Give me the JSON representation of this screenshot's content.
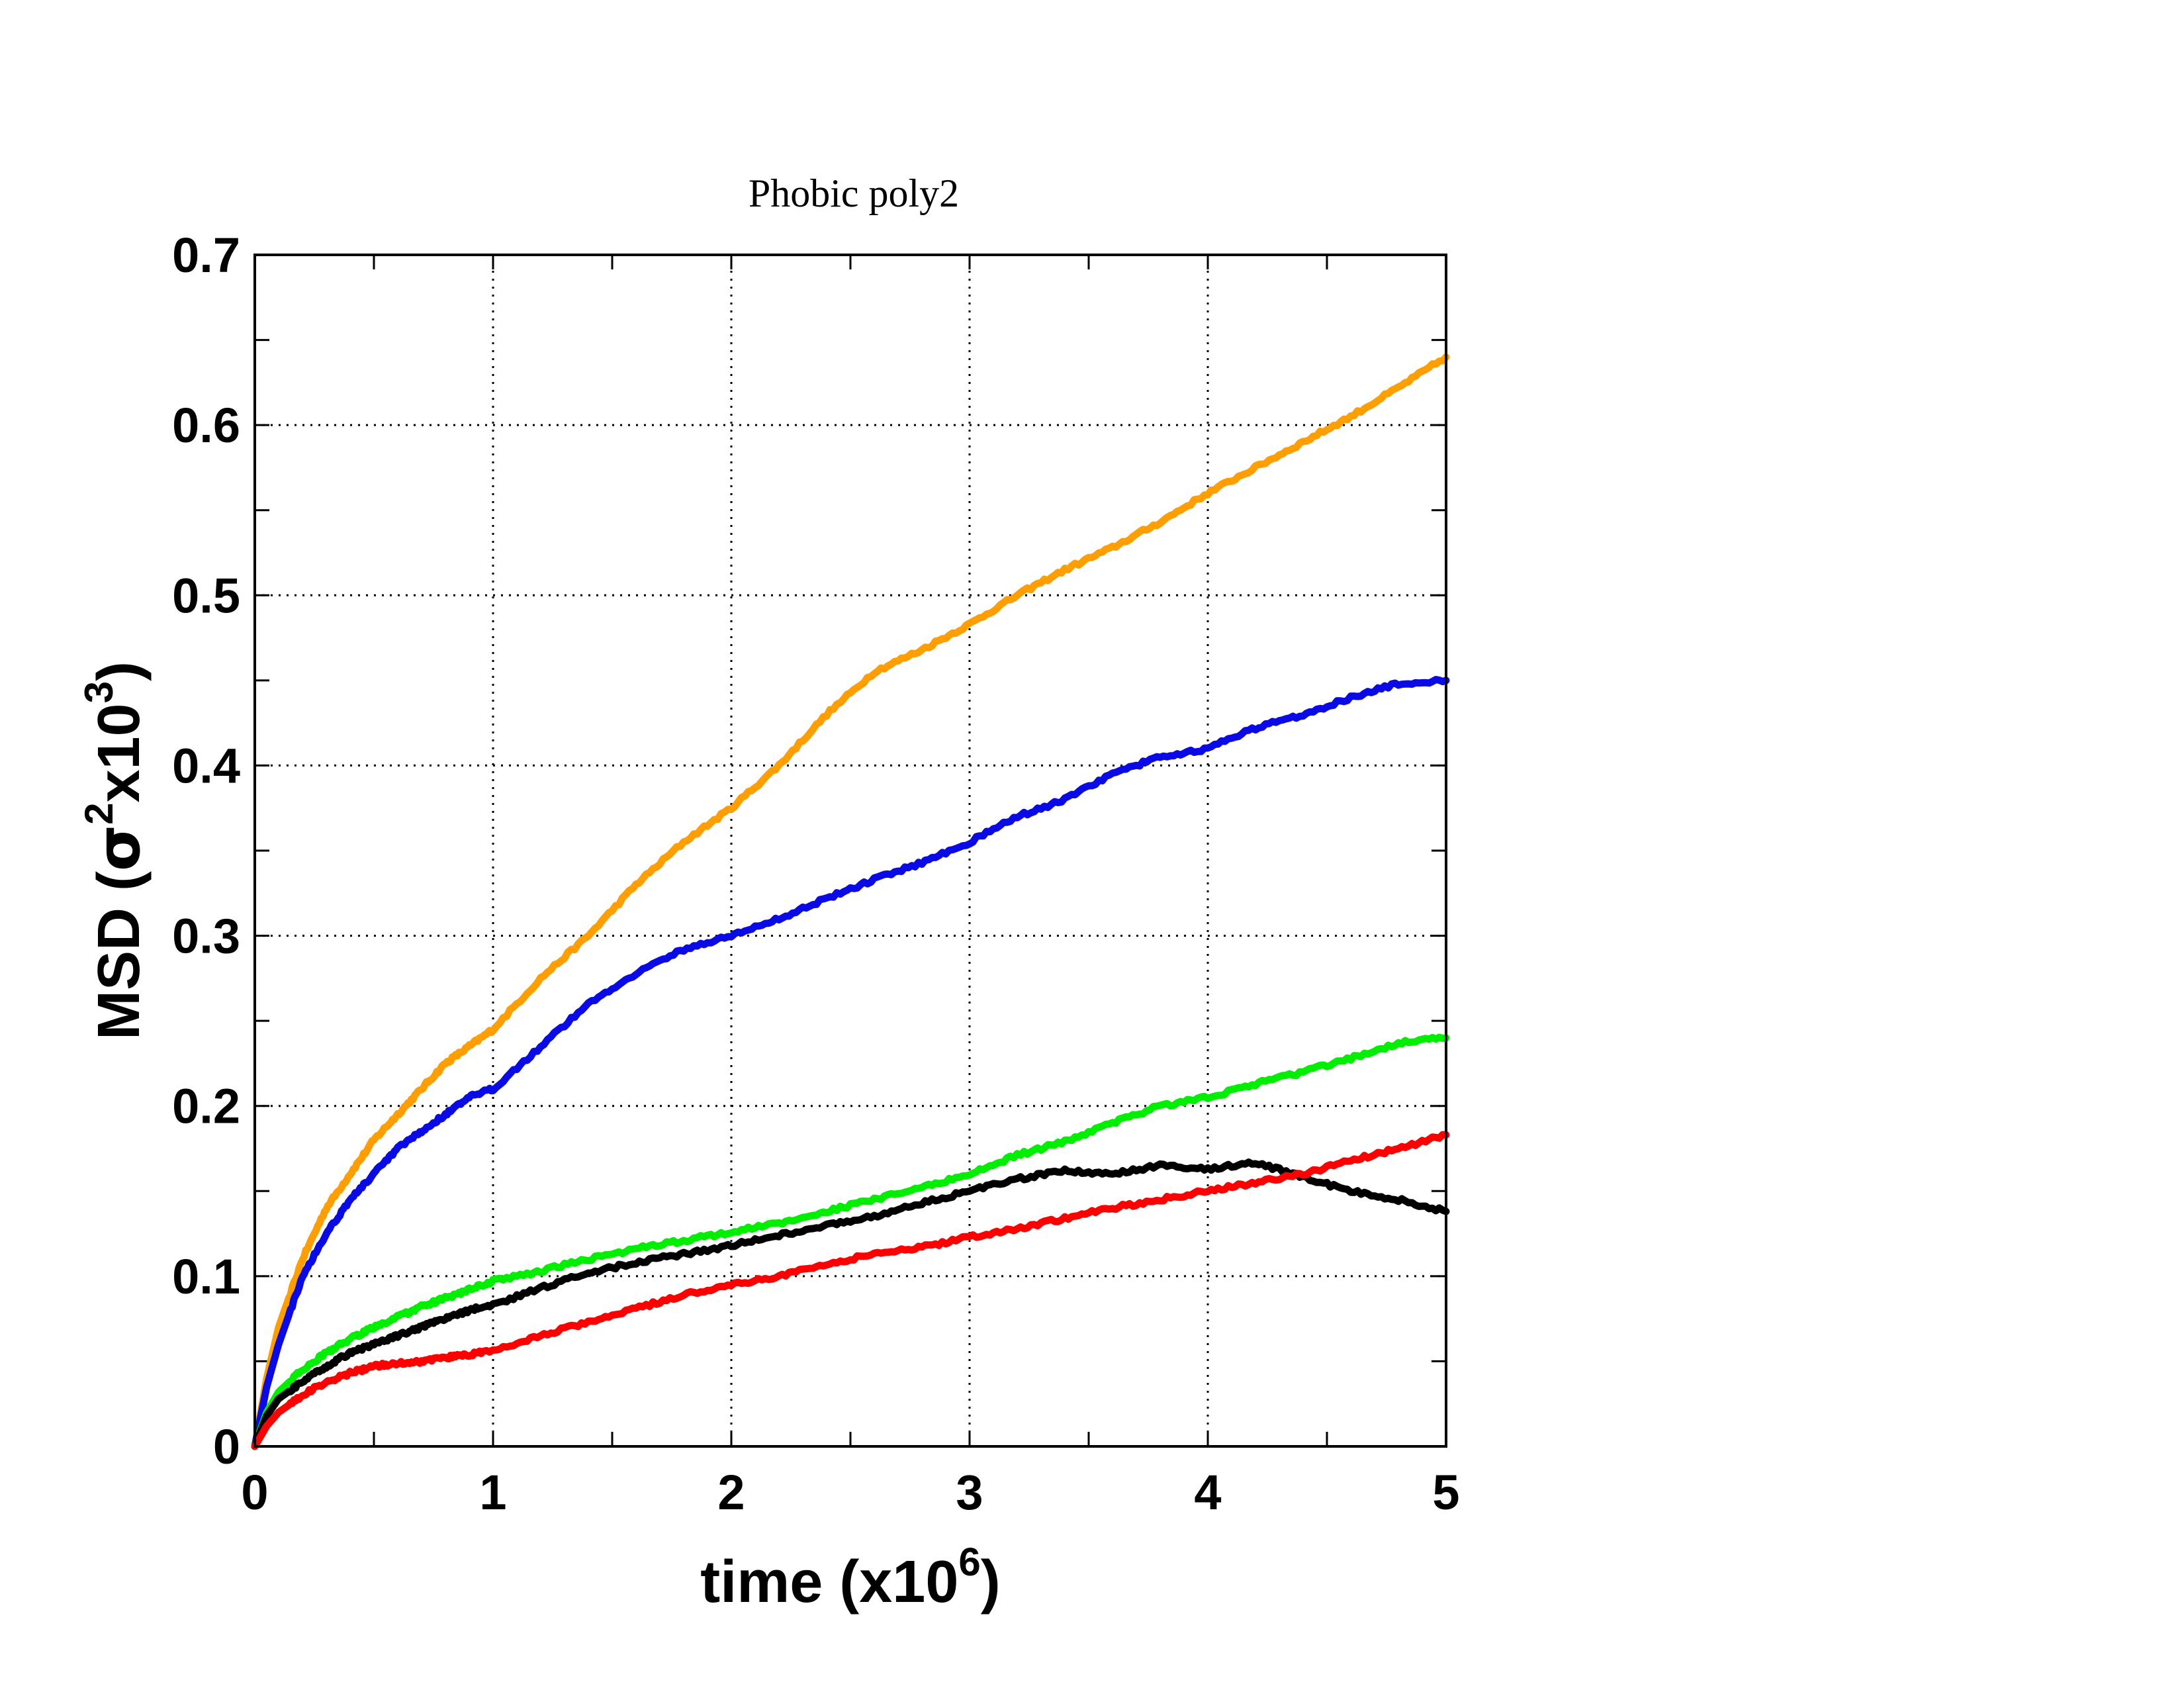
{
  "chart_data": {
    "type": "line",
    "title": "Phobic poly2",
    "xlabel": {
      "main": "time (x10",
      "sup": "6",
      "close": ")"
    },
    "ylabel": {
      "prefix": "MSD (",
      "sigma": "σ",
      "sup1": "2",
      "mid": "x10",
      "sup2": "3",
      "close": ")"
    },
    "xlim": [
      0,
      5
    ],
    "ylim": [
      0,
      0.7
    ],
    "x_ticks": [
      "0",
      "1",
      "2",
      "3",
      "4",
      "5"
    ],
    "y_ticks": [
      "0",
      "0.1",
      "0.2",
      "0.3",
      "0.4",
      "0.5",
      "0.6",
      "0.7"
    ],
    "grid": true,
    "legend": "none",
    "series": [
      {
        "color": "#ff9e00",
        "x": [
          0,
          0.05,
          0.1,
          0.2,
          0.3,
          0.4,
          0.5,
          0.6,
          0.7,
          0.8,
          0.9,
          1.0,
          1.2,
          1.4,
          1.6,
          1.8,
          2.0,
          2.2,
          2.4,
          2.6,
          2.8,
          3.0,
          3.2,
          3.4,
          3.6,
          3.8,
          4.0,
          4.2,
          4.4,
          4.6,
          4.8,
          5.0
        ],
        "y": [
          0,
          0.04,
          0.07,
          0.11,
          0.14,
          0.16,
          0.18,
          0.195,
          0.21,
          0.225,
          0.235,
          0.245,
          0.275,
          0.3,
          0.33,
          0.355,
          0.375,
          0.4,
          0.43,
          0.455,
          0.468,
          0.483,
          0.5,
          0.515,
          0.528,
          0.543,
          0.56,
          0.575,
          0.59,
          0.605,
          0.622,
          0.64
        ]
      },
      {
        "color": "#0a0ae6",
        "x": [
          0,
          0.05,
          0.1,
          0.2,
          0.3,
          0.4,
          0.5,
          0.6,
          0.7,
          0.8,
          0.9,
          1.0,
          1.2,
          1.4,
          1.6,
          1.8,
          2.0,
          2.2,
          2.4,
          2.6,
          2.8,
          3.0,
          3.2,
          3.4,
          3.6,
          3.8,
          4.0,
          4.2,
          4.4,
          4.6,
          4.8,
          5.0
        ],
        "y": [
          0,
          0.035,
          0.06,
          0.1,
          0.125,
          0.145,
          0.16,
          0.175,
          0.185,
          0.195,
          0.205,
          0.21,
          0.235,
          0.26,
          0.278,
          0.292,
          0.3,
          0.31,
          0.322,
          0.333,
          0.343,
          0.355,
          0.37,
          0.38,
          0.395,
          0.405,
          0.41,
          0.422,
          0.43,
          0.44,
          0.448,
          0.45
        ]
      },
      {
        "color": "#00ee00",
        "x": [
          0,
          0.05,
          0.1,
          0.2,
          0.3,
          0.4,
          0.5,
          0.6,
          0.7,
          0.8,
          0.9,
          1.0,
          1.2,
          1.4,
          1.6,
          1.8,
          2.0,
          2.2,
          2.4,
          2.6,
          2.8,
          3.0,
          3.2,
          3.4,
          3.6,
          3.8,
          4.0,
          4.2,
          4.4,
          4.6,
          4.8,
          5.0
        ],
        "y": [
          0,
          0.02,
          0.032,
          0.045,
          0.055,
          0.063,
          0.07,
          0.076,
          0.082,
          0.087,
          0.092,
          0.097,
          0.103,
          0.11,
          0.116,
          0.121,
          0.126,
          0.131,
          0.138,
          0.145,
          0.152,
          0.16,
          0.171,
          0.179,
          0.19,
          0.2,
          0.205,
          0.213,
          0.22,
          0.228,
          0.237,
          0.24
        ]
      },
      {
        "color": "#000000",
        "x": [
          0,
          0.05,
          0.1,
          0.2,
          0.3,
          0.4,
          0.5,
          0.6,
          0.7,
          0.8,
          0.9,
          1.0,
          1.2,
          1.4,
          1.6,
          1.8,
          2.0,
          2.2,
          2.4,
          2.6,
          2.8,
          3.0,
          3.2,
          3.4,
          3.6,
          3.8,
          4.0,
          4.2,
          4.4,
          4.6,
          4.8,
          5.0
        ],
        "y": [
          0,
          0.018,
          0.028,
          0.038,
          0.047,
          0.055,
          0.06,
          0.065,
          0.07,
          0.075,
          0.08,
          0.083,
          0.093,
          0.102,
          0.108,
          0.113,
          0.118,
          0.124,
          0.13,
          0.135,
          0.143,
          0.15,
          0.157,
          0.162,
          0.16,
          0.165,
          0.163,
          0.167,
          0.158,
          0.15,
          0.145,
          0.138
        ]
      },
      {
        "color": "#ff0000",
        "x": [
          0,
          0.05,
          0.1,
          0.2,
          0.3,
          0.4,
          0.5,
          0.6,
          0.7,
          0.8,
          0.9,
          1.0,
          1.2,
          1.4,
          1.6,
          1.8,
          2.0,
          2.2,
          2.4,
          2.6,
          2.8,
          3.0,
          3.2,
          3.4,
          3.6,
          3.8,
          4.0,
          4.2,
          4.4,
          4.6,
          4.8,
          5.0
        ],
        "y": [
          0,
          0.012,
          0.02,
          0.03,
          0.038,
          0.043,
          0.047,
          0.049,
          0.05,
          0.052,
          0.054,
          0.056,
          0.065,
          0.073,
          0.081,
          0.089,
          0.095,
          0.1,
          0.107,
          0.113,
          0.117,
          0.123,
          0.128,
          0.134,
          0.14,
          0.145,
          0.15,
          0.155,
          0.16,
          0.168,
          0.175,
          0.183
        ]
      }
    ]
  }
}
